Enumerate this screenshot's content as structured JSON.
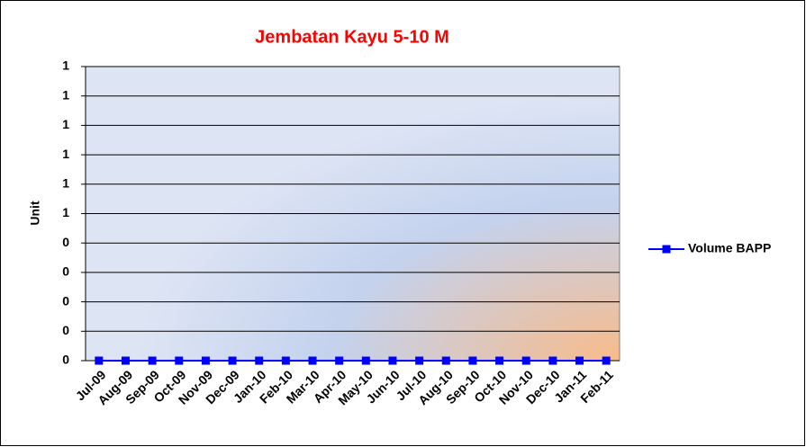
{
  "chart_data": {
    "type": "line",
    "title": "Jembatan Kayu 5-10 M",
    "y_label": "Unit",
    "categories": [
      "Jul-09",
      "Aug-09",
      "Sep-09",
      "Oct-09",
      "Nov-09",
      "Dec-09",
      "Jan-10",
      "Feb-10",
      "Mar-10",
      "Apr-10",
      "May-10",
      "Jun-10",
      "Jul-10",
      "Aug-10",
      "Sep-10",
      "Oct-10",
      "Nov-10",
      "Dec-10",
      "Jan-11",
      "Feb-11"
    ],
    "series": [
      {
        "name": "Volume BAPP",
        "color": "#0000ff",
        "values": [
          0,
          0,
          0,
          0,
          0,
          0,
          0,
          0,
          0,
          0,
          0,
          0,
          0,
          0,
          0,
          0,
          0,
          0,
          0,
          0
        ]
      }
    ],
    "ylim": [
      0,
      1
    ],
    "yticks": [
      0,
      {
        "value": 0.1,
        "label": "0"
      },
      {
        "value": 0.2,
        "label": "0"
      },
      {
        "value": 0.3,
        "label": "0"
      },
      {
        "value": 0.4,
        "label": "0"
      },
      {
        "value": 0.5,
        "label": "1"
      },
      {
        "value": 0.6,
        "label": "1"
      },
      {
        "value": 0.7,
        "label": "1"
      },
      {
        "value": 0.8,
        "label": "1"
      },
      {
        "value": 0.9,
        "label": "1"
      },
      1
    ],
    "grid": true,
    "legend": "right"
  }
}
